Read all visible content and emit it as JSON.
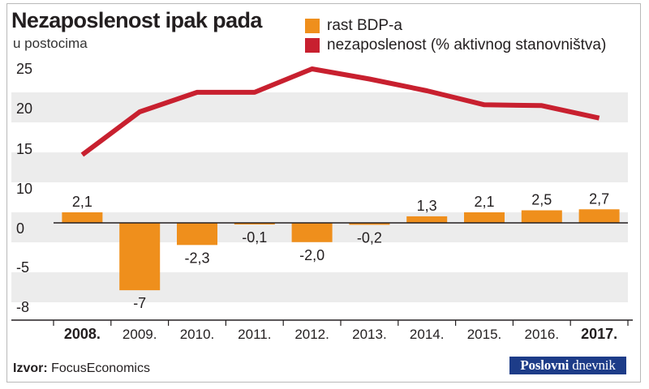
{
  "chart_data": {
    "type": "bar+line",
    "title": "Nezaposlenost ipak pada",
    "subtitle": "u postocima",
    "categories": [
      "2008.",
      "2009.",
      "2010.",
      "2011.",
      "2012.",
      "2013.",
      "2014.",
      "2015.",
      "2016.",
      "2017."
    ],
    "bold_categories": [
      "2008.",
      "2017."
    ],
    "series": [
      {
        "name": "rast BDP-a",
        "type": "bar",
        "color": "#ef8f1c",
        "values": [
          2.1,
          -7,
          -2.3,
          -0.1,
          -2.0,
          -0.2,
          1.3,
          2.1,
          2.5,
          2.7
        ],
        "labels": [
          "2,1",
          "-7",
          "-2,3",
          "-0,1",
          "-2,0",
          "-0,2",
          "1,3",
          "2,1",
          "2,5",
          "2,7"
        ]
      },
      {
        "name": "nezaposlenost (% aktivnog stanovništva)",
        "type": "line",
        "color": "#c8202f",
        "values": [
          14,
          19.5,
          22,
          22,
          25,
          23.7,
          22.2,
          20.4,
          20.3,
          18.7
        ]
      }
    ],
    "y_ticks": [
      "25",
      "20",
      "15",
      "10",
      "0",
      "-5",
      "-8"
    ],
    "grid": "alternating bands",
    "legend_position": "top"
  },
  "source": {
    "label": "Izvor:",
    "text": "FocusEconomics"
  },
  "brand": {
    "part1": "Poslovni",
    "part2": "dnevnik",
    "color": "#1d3c88"
  },
  "colors": {
    "band": "#ececec",
    "axis": "#231f20"
  }
}
